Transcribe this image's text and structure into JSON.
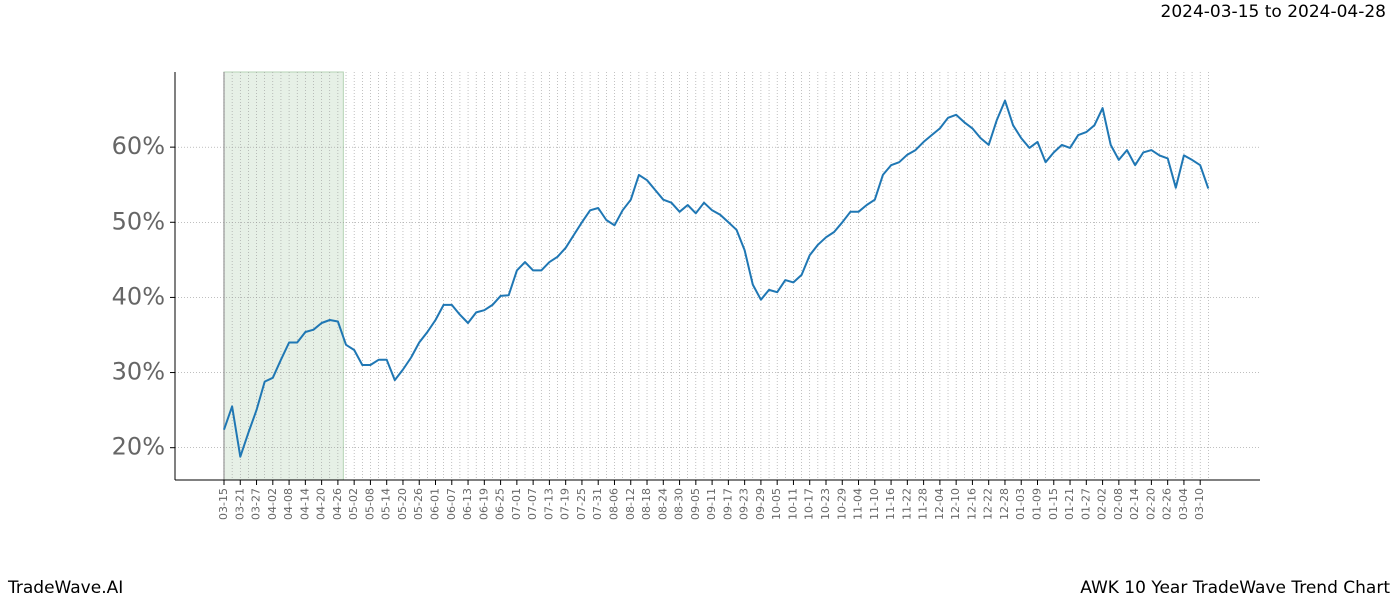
{
  "chart_data": {
    "type": "line",
    "date_range": "2024-03-15 to 2024-04-28",
    "brand": "TradeWave.AI",
    "title": "AWK 10 Year TradeWave Trend Chart",
    "color": "#1f77b4",
    "shaded_range": [
      0,
      14.67
    ],
    "shade_color": "#e6f0e6",
    "grid": true,
    "ylim": [
      15.7,
      70
    ],
    "yticks": [
      {
        "value": 20,
        "label": "20%"
      },
      {
        "value": 30,
        "label": "30%"
      },
      {
        "value": 40,
        "label": "40%"
      },
      {
        "value": 50,
        "label": "50%"
      },
      {
        "value": 60,
        "label": "60%"
      }
    ],
    "categories": [
      "03-15",
      null,
      "03-21",
      null,
      "03-27",
      null,
      "04-02",
      null,
      "04-08",
      null,
      "04-14",
      null,
      "04-20",
      null,
      "04-26",
      null,
      "05-02",
      null,
      "05-08",
      null,
      "05-14",
      null,
      "05-20",
      null,
      "05-26",
      null,
      "06-01",
      null,
      "06-07",
      null,
      "06-13",
      null,
      "06-19",
      null,
      "06-25",
      null,
      "07-01",
      null,
      "07-07",
      null,
      "07-13",
      null,
      "07-19",
      null,
      "07-25",
      null,
      "07-31",
      null,
      "08-06",
      null,
      "08-12",
      null,
      "08-18",
      null,
      "08-24",
      null,
      "08-30",
      null,
      "09-05",
      null,
      "09-11",
      null,
      "09-17",
      null,
      "09-23",
      null,
      "09-29",
      null,
      "10-05",
      null,
      "10-11",
      null,
      "10-17",
      null,
      "10-23",
      null,
      "10-29",
      null,
      "11-04",
      null,
      "11-10",
      null,
      "11-16",
      null,
      "11-22",
      null,
      "11-28",
      null,
      "12-04",
      null,
      "12-10",
      null,
      "12-16",
      null,
      "12-22",
      null,
      "12-28",
      null,
      "01-03",
      null,
      "01-09",
      null,
      "01-15",
      null,
      "01-21",
      null,
      "01-27",
      null,
      "02-02",
      null,
      "02-08",
      null,
      "02-14",
      null,
      "02-20",
      null,
      "02-26",
      null,
      "03-04",
      null,
      "03-10",
      null
    ],
    "values": [
      22.4,
      25.5,
      18.8,
      22,
      25,
      28.8,
      29.3,
      31.7,
      34,
      34,
      35.4,
      35.7,
      36.6,
      37,
      36.8,
      33.7,
      33,
      31,
      31,
      31.7,
      31.7,
      29,
      30.4,
      32,
      34,
      35.4,
      37,
      39,
      39,
      37.7,
      36.6,
      38,
      38.3,
      39,
      40.2,
      40.3,
      43.6,
      44.7,
      43.6,
      43.6,
      44.7,
      45.4,
      46.6,
      48.3,
      50,
      51.6,
      51.9,
      50.3,
      49.6,
      51.6,
      53,
      56.3,
      55.6,
      54.3,
      53,
      52.6,
      51.4,
      52.3,
      51.2,
      52.6,
      51.6,
      51,
      50,
      49,
      46.3,
      41.7,
      39.7,
      41,
      40.7,
      42.3,
      42,
      43,
      45.6,
      47,
      48,
      48.7,
      50,
      51.4,
      51.4,
      52.3,
      53,
      56.3,
      57.6,
      58,
      59,
      59.6,
      60.7,
      61.6,
      62.5,
      63.9,
      64.3,
      63.3,
      62.5,
      61.2,
      60.3,
      63.6,
      66.2,
      62.9,
      61.2,
      59.9,
      60.7,
      58,
      59.3,
      60.3,
      59.9,
      61.6,
      62,
      62.9,
      65.2,
      60.3,
      58.3,
      59.6,
      57.6,
      59.3,
      59.6,
      58.9,
      58.5,
      54.6,
      58.9,
      58.3,
      57.6,
      54.5
    ]
  }
}
